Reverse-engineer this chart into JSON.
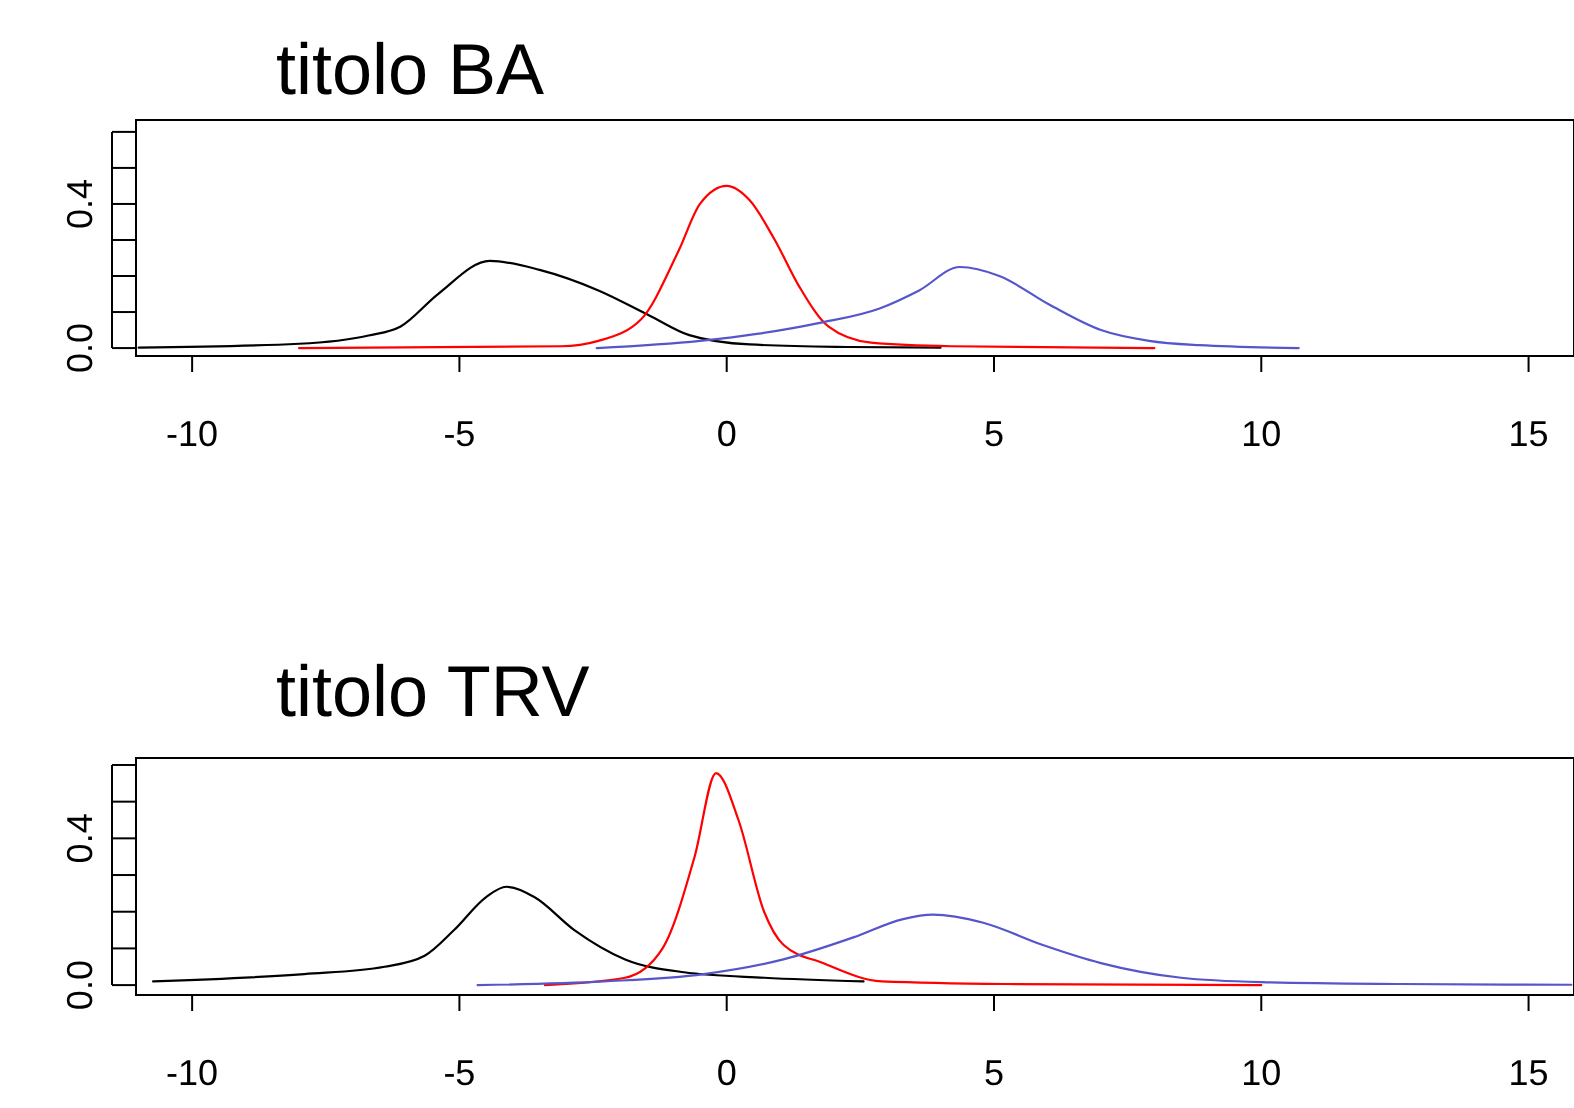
{
  "chart_data": [
    {
      "type": "line",
      "title": "titolo BA",
      "xlim": [
        -11.05,
        15.85
      ],
      "ylim": [
        -0.022,
        0.633
      ],
      "xticks": [
        -10,
        -5,
        0,
        5,
        10,
        15
      ],
      "yticks": [
        {
          "value": 0,
          "label": "0.0"
        },
        {
          "value": 0.1,
          "label": null
        },
        {
          "value": 0.2,
          "label": null
        },
        {
          "value": 0.3,
          "label": null
        },
        {
          "value": 0.4,
          "label": "0.4"
        },
        {
          "value": 0.5,
          "label": null
        },
        {
          "value": 0.6,
          "label": null
        }
      ],
      "series": [
        {
          "color": "#000000",
          "x": [
            -11,
            -8,
            -6.7,
            -6.1,
            -5.4,
            -4.43,
            -3.5,
            -2.4,
            -1.44,
            -0.7,
            0.43,
            2.3,
            4
          ],
          "values": [
            0.001,
            0.012,
            0.035,
            0.06,
            0.15,
            0.242,
            0.217,
            0.16,
            0.09,
            0.036,
            0.01,
            0.003,
            0.001
          ]
        },
        {
          "color": "#ff0000",
          "x": [
            -8,
            -3.1,
            -2.4,
            -1.6,
            -0.9,
            -0.5,
            0,
            0.43,
            0.9,
            1.36,
            1.9,
            2.7,
            4.2,
            8
          ],
          "values": [
            0,
            0.005,
            0.02,
            0.08,
            0.27,
            0.4,
            0.45,
            0.41,
            0.3,
            0.17,
            0.06,
            0.015,
            0.005,
            0
          ]
        },
        {
          "color": "#5555cc",
          "x": [
            -2.43,
            -0.5,
            0.6,
            1.74,
            2.86,
            3.6,
            4.36,
            5.1,
            6.04,
            7,
            7.9,
            8.84,
            10.7
          ],
          "values": [
            0,
            0.02,
            0.04,
            0.07,
            0.11,
            0.16,
            0.225,
            0.2,
            0.12,
            0.05,
            0.02,
            0.008,
            0
          ]
        }
      ]
    },
    {
      "type": "line",
      "title": "titolo TRV",
      "xlim": [
        -11.05,
        15.85
      ],
      "ylim": [
        -0.027,
        0.619
      ],
      "xticks": [
        -10,
        -5,
        0,
        5,
        10,
        15
      ],
      "yticks": [
        {
          "value": 0,
          "label": "0.0"
        },
        {
          "value": 0.1,
          "label": null
        },
        {
          "value": 0.2,
          "label": null
        },
        {
          "value": 0.3,
          "label": null
        },
        {
          "value": 0.4,
          "label": "0.4"
        },
        {
          "value": 0.5,
          "label": null
        },
        {
          "value": 0.6,
          "label": null
        }
      ],
      "series": [
        {
          "color": "#000000",
          "x": [
            -10.73,
            -7.9,
            -6.4,
            -5.65,
            -5.1,
            -4.5,
            -4.12,
            -3.6,
            -2.85,
            -1.9,
            -0.8,
            0.7,
            2.56
          ],
          "values": [
            0.01,
            0.03,
            0.05,
            0.08,
            0.15,
            0.24,
            0.268,
            0.24,
            0.15,
            0.07,
            0.035,
            0.02,
            0.01
          ]
        },
        {
          "color": "#ff0000",
          "x": [
            -3.4,
            -1.9,
            -1.2,
            -0.6,
            -0.2,
            0.22,
            0.7,
            1.06,
            1.8,
            2.9,
            5.2,
            10
          ],
          "values": [
            0,
            0.02,
            0.1,
            0.35,
            0.578,
            0.45,
            0.2,
            0.11,
            0.06,
            0.01,
            0.003,
            0
          ]
        },
        {
          "color": "#5555cc",
          "x": [
            -4.66,
            -2.3,
            -0.43,
            1.06,
            2.37,
            3.3,
            3.86,
            4.8,
            5.9,
            7,
            8.5,
            10,
            12.6,
            15.8
          ],
          "values": [
            0,
            0.01,
            0.03,
            0.07,
            0.13,
            0.18,
            0.192,
            0.17,
            0.11,
            0.06,
            0.02,
            0.008,
            0.003,
            0.001
          ]
        }
      ]
    }
  ]
}
